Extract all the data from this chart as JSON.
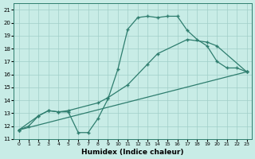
{
  "xlabel": "Humidex (Indice chaleur)",
  "xlim": [
    -0.5,
    23.5
  ],
  "ylim": [
    11,
    21.5
  ],
  "yticks": [
    11,
    12,
    13,
    14,
    15,
    16,
    17,
    18,
    19,
    20,
    21
  ],
  "xticks": [
    0,
    1,
    2,
    3,
    4,
    5,
    6,
    7,
    8,
    9,
    10,
    11,
    12,
    13,
    14,
    15,
    16,
    17,
    18,
    19,
    20,
    21,
    22,
    23
  ],
  "bg_color": "#c8ece6",
  "line_color": "#2e7d6e",
  "grid_color": "#a0cfc8",
  "line1_x": [
    0,
    1,
    2,
    3,
    4,
    5,
    6,
    7,
    8,
    9,
    10,
    11,
    12,
    13,
    14,
    15,
    16,
    17,
    18,
    19,
    20,
    21,
    22,
    23
  ],
  "line1_y": [
    11.7,
    12.0,
    12.8,
    13.2,
    13.1,
    13.1,
    11.5,
    11.5,
    12.6,
    14.1,
    16.4,
    19.5,
    20.4,
    20.5,
    20.4,
    20.5,
    20.5,
    19.4,
    18.7,
    18.2,
    17.0,
    16.5,
    16.5,
    16.2
  ],
  "line2_x": [
    0,
    2,
    3,
    4,
    5,
    8,
    9,
    11,
    13,
    14,
    17,
    19,
    20,
    23
  ],
  "line2_y": [
    11.7,
    12.8,
    13.2,
    13.1,
    13.2,
    13.8,
    14.2,
    15.2,
    16.8,
    17.6,
    18.7,
    18.5,
    18.2,
    16.2
  ],
  "line3_x": [
    0,
    23
  ],
  "line3_y": [
    11.7,
    16.2
  ],
  "marker": "+",
  "markersize": 3.5,
  "linewidth": 0.9
}
